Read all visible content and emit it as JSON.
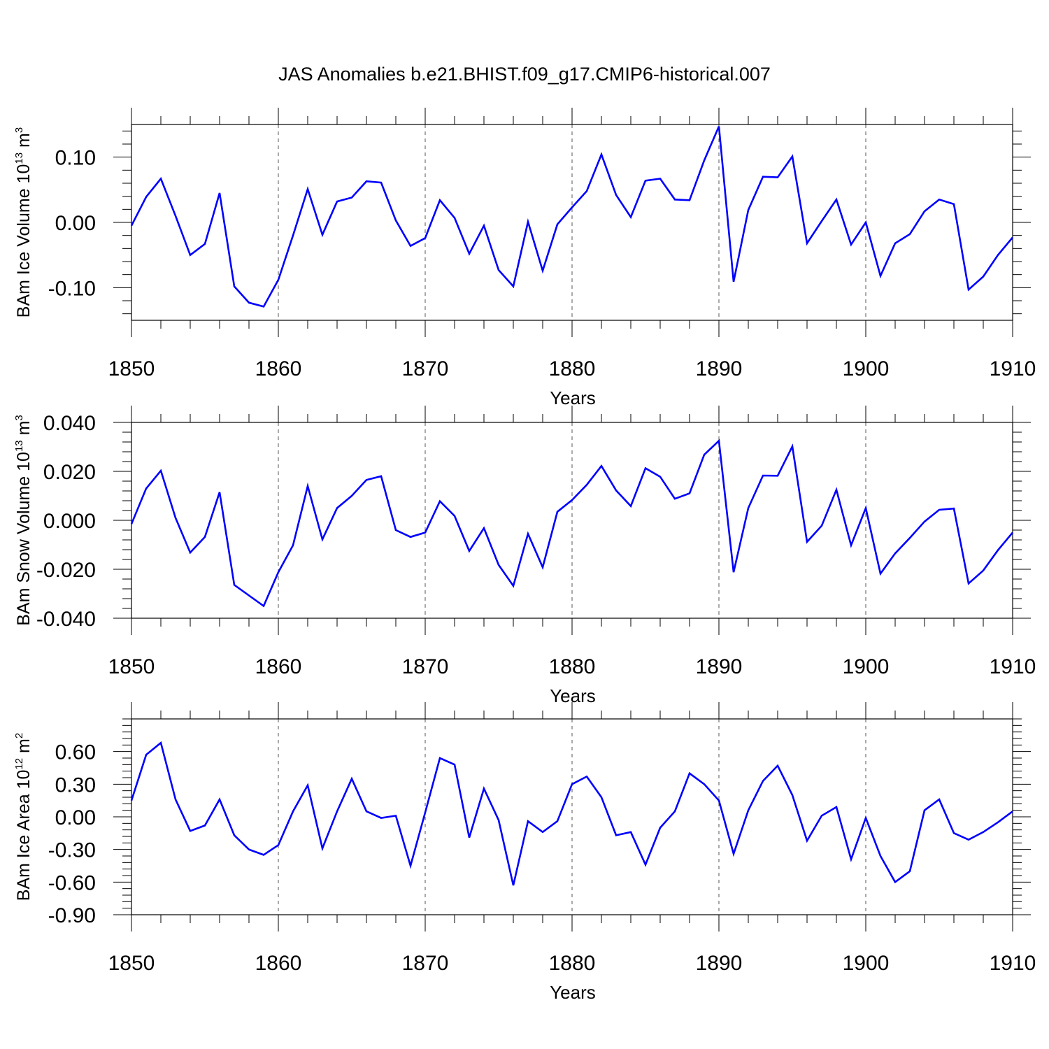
{
  "title": "JAS Anomalies b.e21.BHIST.f09_g17.CMIP6-historical.007",
  "colors": {
    "series": "#0000ff",
    "axes": "#000000",
    "grid": "#555555"
  },
  "chart_data": [
    {
      "type": "line",
      "name": "ice-volume",
      "ylabel": {
        "text": "BAm Ice Volume 10",
        "exp": "13",
        "unit": " m",
        "unit_exp": "3"
      },
      "xlabel": "Years",
      "xlim": [
        1850,
        1910
      ],
      "ylim": [
        -0.15,
        0.15
      ],
      "yticks": [
        -0.1,
        0.0,
        0.1
      ],
      "ytick_labels": [
        "-0.10",
        "0.00",
        "0.10"
      ],
      "xticks": [
        1850,
        1860,
        1870,
        1880,
        1890,
        1900,
        1910
      ],
      "xtick_labels": [
        "1850",
        "1860",
        "1870",
        "1880",
        "1890",
        "1900",
        "1910"
      ],
      "x": [
        1850,
        1851,
        1852,
        1853,
        1854,
        1855,
        1856,
        1857,
        1858,
        1859,
        1860,
        1861,
        1862,
        1863,
        1864,
        1865,
        1866,
        1867,
        1868,
        1869,
        1870,
        1871,
        1872,
        1873,
        1874,
        1875,
        1876,
        1877,
        1878,
        1879,
        1880,
        1881,
        1882,
        1883,
        1884,
        1885,
        1886,
        1887,
        1888,
        1889,
        1890,
        1891,
        1892,
        1893,
        1894,
        1895,
        1896,
        1897,
        1898,
        1899,
        1900,
        1901,
        1902,
        1903,
        1904,
        1905,
        1906,
        1907,
        1908,
        1909,
        1910
      ],
      "values": [
        -0.005,
        0.039,
        0.067,
        0.01,
        -0.05,
        -0.033,
        0.045,
        -0.098,
        -0.123,
        -0.129,
        -0.088,
        -0.02,
        0.051,
        -0.019,
        0.032,
        0.038,
        0.063,
        0.061,
        0.003,
        -0.036,
        -0.024,
        0.034,
        0.007,
        -0.048,
        -0.005,
        -0.073,
        -0.098,
        0.001,
        -0.074,
        -0.003,
        0.023,
        0.048,
        0.104,
        0.042,
        0.008,
        0.064,
        0.067,
        0.035,
        0.034,
        0.095,
        0.147,
        -0.091,
        0.019,
        0.07,
        0.069,
        0.101,
        -0.032,
        0.002,
        0.035,
        -0.034,
        0.0,
        -0.082,
        -0.032,
        -0.018,
        0.017,
        0.035,
        0.028,
        -0.103,
        -0.083,
        -0.05,
        -0.023
      ]
    },
    {
      "type": "line",
      "name": "snow-volume",
      "ylabel": {
        "text": "BAm Snow Volume 10",
        "exp": "13",
        "unit": " m",
        "unit_exp": "3"
      },
      "xlabel": "Years",
      "xlim": [
        1850,
        1910
      ],
      "ylim": [
        -0.04,
        0.04
      ],
      "yticks": [
        -0.04,
        -0.02,
        0.0,
        0.02,
        0.04
      ],
      "ytick_labels": [
        "-0.040",
        "-0.020",
        "0.000",
        "0.020",
        "0.040"
      ],
      "xticks": [
        1850,
        1860,
        1870,
        1880,
        1890,
        1900,
        1910
      ],
      "xtick_labels": [
        "1850",
        "1860",
        "1870",
        "1880",
        "1890",
        "1900",
        "1910"
      ],
      "x": [
        1850,
        1851,
        1852,
        1853,
        1854,
        1855,
        1856,
        1857,
        1858,
        1859,
        1860,
        1861,
        1862,
        1863,
        1864,
        1865,
        1866,
        1867,
        1868,
        1869,
        1870,
        1871,
        1872,
        1873,
        1874,
        1875,
        1876,
        1877,
        1878,
        1879,
        1880,
        1881,
        1882,
        1883,
        1884,
        1885,
        1886,
        1887,
        1888,
        1889,
        1890,
        1891,
        1892,
        1893,
        1894,
        1895,
        1896,
        1897,
        1898,
        1899,
        1900,
        1901,
        1902,
        1903,
        1904,
        1905,
        1906,
        1907,
        1908,
        1909,
        1910
      ],
      "values": [
        -0.0015,
        0.013,
        0.0203,
        0.001,
        -0.0132,
        -0.0068,
        0.0115,
        -0.0264,
        -0.0307,
        -0.035,
        -0.0212,
        -0.0102,
        0.014,
        -0.0078,
        0.005,
        0.01,
        0.0165,
        0.018,
        -0.004,
        -0.0068,
        -0.005,
        0.0078,
        0.0018,
        -0.0125,
        -0.0032,
        -0.0182,
        -0.0268,
        -0.0055,
        -0.0192,
        0.0035,
        0.0083,
        0.0145,
        0.0222,
        0.0122,
        0.0058,
        0.0213,
        0.0178,
        0.0088,
        0.011,
        0.0268,
        0.0325,
        -0.0212,
        0.005,
        0.0183,
        0.0182,
        0.0302,
        -0.0088,
        -0.0022,
        0.0125,
        -0.0102,
        0.005,
        -0.0218,
        -0.0135,
        -0.0072,
        -0.0005,
        0.0043,
        0.0048,
        -0.0258,
        -0.0205,
        -0.0122,
        -0.005
      ]
    },
    {
      "type": "line",
      "name": "ice-area",
      "ylabel": {
        "text": "BAm Ice Area 10",
        "exp": "12",
        "unit": " m",
        "unit_exp": "2"
      },
      "xlabel": "Years",
      "xlim": [
        1850,
        1910
      ],
      "ylim": [
        -0.9,
        0.9
      ],
      "yticks": [
        -0.9,
        -0.6,
        -0.3,
        0.0,
        0.3,
        0.6
      ],
      "ytick_labels": [
        "-0.90",
        "-0.60",
        "-0.30",
        "0.00",
        "0.30",
        "0.60"
      ],
      "xticks": [
        1850,
        1860,
        1870,
        1880,
        1890,
        1900,
        1910
      ],
      "xtick_labels": [
        "1850",
        "1860",
        "1870",
        "1880",
        "1890",
        "1900",
        "1910"
      ],
      "x": [
        1850,
        1851,
        1852,
        1853,
        1854,
        1855,
        1856,
        1857,
        1858,
        1859,
        1860,
        1861,
        1862,
        1863,
        1864,
        1865,
        1866,
        1867,
        1868,
        1869,
        1870,
        1871,
        1872,
        1873,
        1874,
        1875,
        1876,
        1877,
        1878,
        1879,
        1880,
        1881,
        1882,
        1883,
        1884,
        1885,
        1886,
        1887,
        1888,
        1889,
        1890,
        1891,
        1892,
        1893,
        1894,
        1895,
        1896,
        1897,
        1898,
        1899,
        1900,
        1901,
        1902,
        1903,
        1904,
        1905,
        1906,
        1907,
        1908,
        1909,
        1910
      ],
      "values": [
        0.15,
        0.57,
        0.68,
        0.16,
        -0.13,
        -0.08,
        0.16,
        -0.17,
        -0.3,
        -0.35,
        -0.26,
        0.05,
        0.29,
        -0.29,
        0.05,
        0.35,
        0.05,
        -0.01,
        0.01,
        -0.45,
        0.04,
        0.54,
        0.48,
        -0.19,
        0.26,
        -0.03,
        -0.63,
        -0.04,
        -0.14,
        -0.04,
        0.3,
        0.37,
        0.18,
        -0.17,
        -0.14,
        -0.44,
        -0.1,
        0.05,
        0.4,
        0.3,
        0.15,
        -0.34,
        0.06,
        0.33,
        0.47,
        0.2,
        -0.22,
        0.01,
        0.09,
        -0.39,
        -0.01,
        -0.36,
        -0.6,
        -0.5,
        0.06,
        0.16,
        -0.15,
        -0.21,
        -0.14,
        -0.05,
        0.05
      ]
    }
  ]
}
